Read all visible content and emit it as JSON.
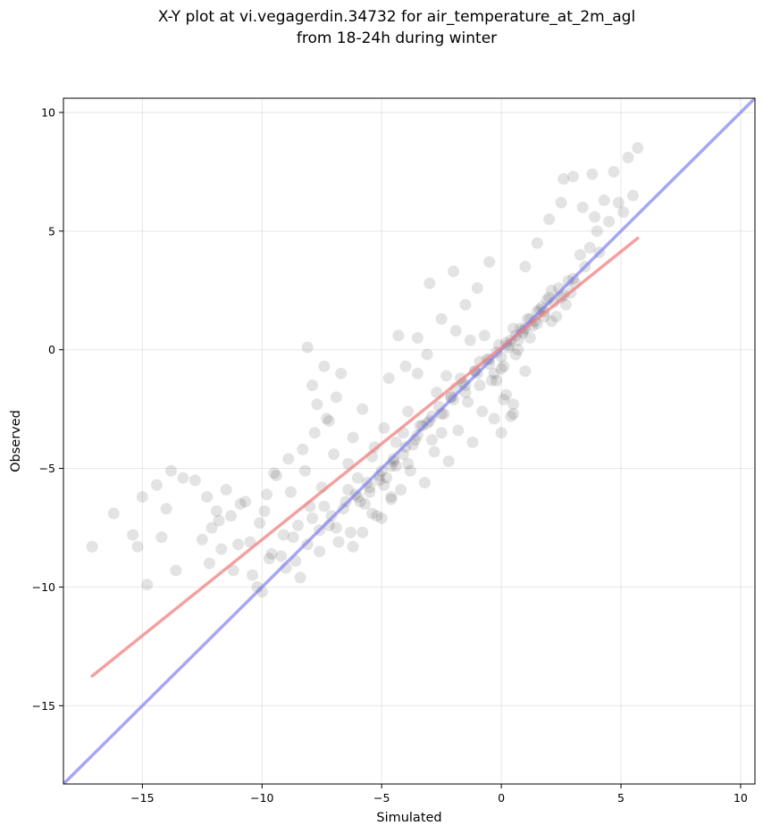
{
  "chart_data": {
    "type": "scatter",
    "title_line1": "X-Y plot at vi.vegagerdin.34732 for air_temperature_at_2m_agl",
    "title_line2": "from 18-24h during winter",
    "xlabel": "Simulated",
    "ylabel": "Observed",
    "xlim": [
      -18.3,
      10.6
    ],
    "ylim": [
      -18.3,
      10.6
    ],
    "xticks": [
      -15,
      -10,
      -5,
      0,
      5,
      10
    ],
    "yticks": [
      -15,
      -10,
      -5,
      0,
      5,
      10
    ],
    "xtick_labels": [
      "−15",
      "−10",
      "−5",
      "0",
      "5",
      "10"
    ],
    "ytick_labels": [
      "−15",
      "−10",
      "−5",
      "0",
      "5",
      "10"
    ],
    "grid": true,
    "colors": {
      "points": "#000000",
      "fit_line": "#f08080",
      "identity_line": "#8080f0"
    },
    "fit_line": {
      "x": [
        -17.1,
        5.7
      ],
      "y": [
        -13.75,
        4.7
      ]
    },
    "identity_line": {
      "x": [
        -18.3,
        10.6
      ],
      "y": [
        -18.3,
        10.6
      ]
    },
    "points": {
      "x": [
        -17.1,
        -16.2,
        -15.4,
        -15.2,
        -15.0,
        -14.8,
        -14.4,
        -14.2,
        -14.0,
        -13.8,
        -13.6,
        -13.3,
        -12.8,
        -12.5,
        -12.3,
        -12.1,
        -11.9,
        -11.7,
        -11.5,
        -11.3,
        -11.0,
        -10.7,
        -10.4,
        -10.1,
        -9.8,
        -9.6,
        -9.4,
        -9.1,
        -8.8,
        -8.6,
        -8.3,
        -8.0,
        -7.8,
        -7.5,
        -7.3,
        -7.0,
        -12.2,
        -11.8,
        -11.2,
        -10.9,
        -10.5,
        -10.2,
        -9.9,
        -9.5,
        -9.2,
        -8.9,
        -8.5,
        -8.2,
        -8.1,
        -7.9,
        -7.7,
        -7.4,
        -7.2,
        -6.9,
        -6.7,
        -6.4,
        -6.2,
        -6.0,
        -5.8,
        -5.5,
        -5.3,
        -5.1,
        -4.9,
        -4.7,
        -4.5,
        -4.3,
        -4.1,
        -3.9,
        -3.7,
        -3.5,
        -3.3,
        -3.1,
        -2.9,
        -2.7,
        -2.5,
        -2.3,
        -2.1,
        -1.9,
        -1.7,
        -1.5,
        -1.3,
        -1.1,
        -0.9,
        -0.7,
        -0.5,
        -0.3,
        -0.1,
        0.1,
        0.3,
        0.5,
        0.7,
        0.9,
        1.1,
        1.3,
        1.5,
        1.7,
        1.9,
        2.1,
        2.3,
        2.5,
        2.7,
        2.9,
        3.1,
        3.3,
        3.5,
        3.7,
        3.9,
        4.1,
        4.3,
        4.5,
        4.7,
        4.9,
        5.1,
        5.3,
        5.5,
        5.7,
        4.0,
        3.8,
        3.4,
        2.6,
        -8.1,
        -7.6,
        -7.1,
        -6.6,
        -6.1,
        -5.6,
        -5.1,
        -4.6,
        -4.1,
        -3.6,
        -3.1,
        -2.6,
        -2.1,
        -1.6,
        -1.1,
        -0.6,
        -0.2,
        0.2,
        0.6,
        1.0,
        1.4,
        1.8,
        2.2,
        2.6,
        -6.5,
        -6.0,
        -5.5,
        -5.0,
        -4.5,
        -4.0,
        -3.5,
        -3.0,
        -2.5,
        -2.0,
        -1.5,
        -1.0,
        -0.5,
        0.0,
        0.4,
        0.8,
        1.2,
        1.6,
        2.0,
        2.4,
        2.8,
        3.0,
        -4.8,
        -4.4,
        -7.9,
        -7.4,
        -6.9,
        -6.4,
        -5.9,
        -5.4,
        -4.9,
        -4.4,
        -3.9,
        -3.4,
        -2.9,
        -2.4,
        -1.9,
        -1.4,
        -0.9,
        -0.4,
        0.0,
        0.3,
        0.6,
        0.9,
        1.2,
        1.5,
        1.8,
        2.1,
        -10.0,
        -9.7,
        -9.0,
        -8.7,
        -8.4,
        -7.6,
        -7.2,
        -6.8,
        -6.3,
        -5.7,
        -5.2,
        -4.6,
        -4.2,
        -3.8,
        -3.2,
        -2.8,
        -2.2,
        -1.8,
        -1.2,
        -0.8,
        -0.3,
        0.2,
        0.5,
        1.0,
        -3.0,
        -2.0,
        -1.0,
        -0.5,
        -1.5,
        -2.5,
        -3.5,
        -4.0,
        0.0,
        0.5,
        1.0,
        1.5,
        2.0,
        2.5,
        3.0,
        -6.2,
        -5.8,
        -5.4,
        -5.0,
        -4.6,
        -0.2,
        0.1,
        0.4,
        0.7
      ],
      "y": [
        -8.3,
        -6.9,
        -7.8,
        -8.3,
        -6.2,
        -9.9,
        -5.7,
        -7.9,
        -6.7,
        -5.1,
        -9.3,
        -5.4,
        -5.5,
        -8.0,
        -6.2,
        -7.5,
        -6.8,
        -8.4,
        -5.9,
        -7.0,
        -8.2,
        -6.4,
        -9.5,
        -7.3,
        -6.1,
        -8.6,
        -5.3,
        -7.8,
        -6.0,
        -8.9,
        -4.2,
        -6.6,
        -3.5,
        -5.8,
        -2.9,
        -4.4,
        -9.0,
        -7.2,
        -9.3,
        -6.5,
        -8.1,
        -10.0,
        -6.8,
        -5.2,
        -8.7,
        -4.6,
        -7.4,
        -5.1,
        0.1,
        -1.5,
        -2.3,
        -0.7,
        -3.0,
        -2.0,
        -1.0,
        -4.8,
        -3.7,
        -5.4,
        -2.5,
        -6.0,
        -4.1,
        -5.5,
        -3.3,
        -1.2,
        -4.7,
        0.6,
        -3.5,
        -2.6,
        -4.0,
        -1.0,
        -3.2,
        -0.2,
        -2.8,
        -1.8,
        -3.5,
        -1.1,
        -2.0,
        0.8,
        -1.2,
        -1.8,
        0.4,
        -0.9,
        -1.5,
        0.6,
        -0.4,
        -1.0,
        0.2,
        -0.7,
        0.1,
        0.9,
        0.4,
        0.8,
        1.3,
        1.0,
        1.6,
        1.8,
        2.1,
        2.5,
        1.4,
        2.2,
        1.9,
        2.4,
        2.8,
        4.0,
        3.5,
        4.3,
        5.6,
        4.1,
        6.3,
        5.4,
        7.5,
        6.2,
        5.8,
        8.1,
        6.5,
        8.5,
        5.0,
        7.4,
        6.0,
        7.2,
        -8.2,
        -7.6,
        -7.0,
        -6.7,
        -6.1,
        -5.6,
        -5.3,
        -4.9,
        -4.4,
        -3.8,
        -3.1,
        -2.4,
        -2.0,
        -1.4,
        -0.9,
        -0.4,
        -0.1,
        0.3,
        0.6,
        0.9,
        1.2,
        1.6,
        2.0,
        2.3,
        -6.4,
        -6.2,
        -5.8,
        -5.1,
        -4.6,
        -4.1,
        -3.6,
        -3.0,
        -2.7,
        -2.1,
        -1.5,
        -1.0,
        -0.6,
        -0.3,
        0.4,
        0.9,
        1.3,
        1.7,
        2.2,
        2.6,
        2.9,
        3.0,
        -5.4,
        -4.9,
        -7.1,
        -6.6,
        -7.5,
        -5.9,
        -6.4,
        -4.5,
        -5.7,
        -3.9,
        -4.8,
        -3.2,
        -3.8,
        -2.7,
        -1.6,
        -2.2,
        -0.5,
        -1.3,
        -0.8,
        0.2,
        -0.2,
        0.7,
        0.5,
        1.1,
        1.4,
        1.2,
        -10.2,
        -8.8,
        -9.2,
        -7.9,
        -9.6,
        -8.5,
        -7.4,
        -8.1,
        -7.7,
        -6.5,
        -7.0,
        -6.2,
        -5.9,
        -5.1,
        -5.6,
        -4.3,
        -4.7,
        -3.4,
        -3.9,
        -2.6,
        -2.9,
        -1.9,
        -2.3,
        -0.9,
        2.8,
        3.3,
        2.6,
        3.7,
        1.9,
        1.3,
        0.5,
        -0.7,
        -3.5,
        -2.7,
        3.5,
        4.5,
        5.5,
        6.2,
        7.3,
        -8.3,
        -7.7,
        -6.9,
        -7.1,
        -6.3,
        -1.3,
        -2.1,
        -2.8,
        0.0
      ]
    }
  }
}
